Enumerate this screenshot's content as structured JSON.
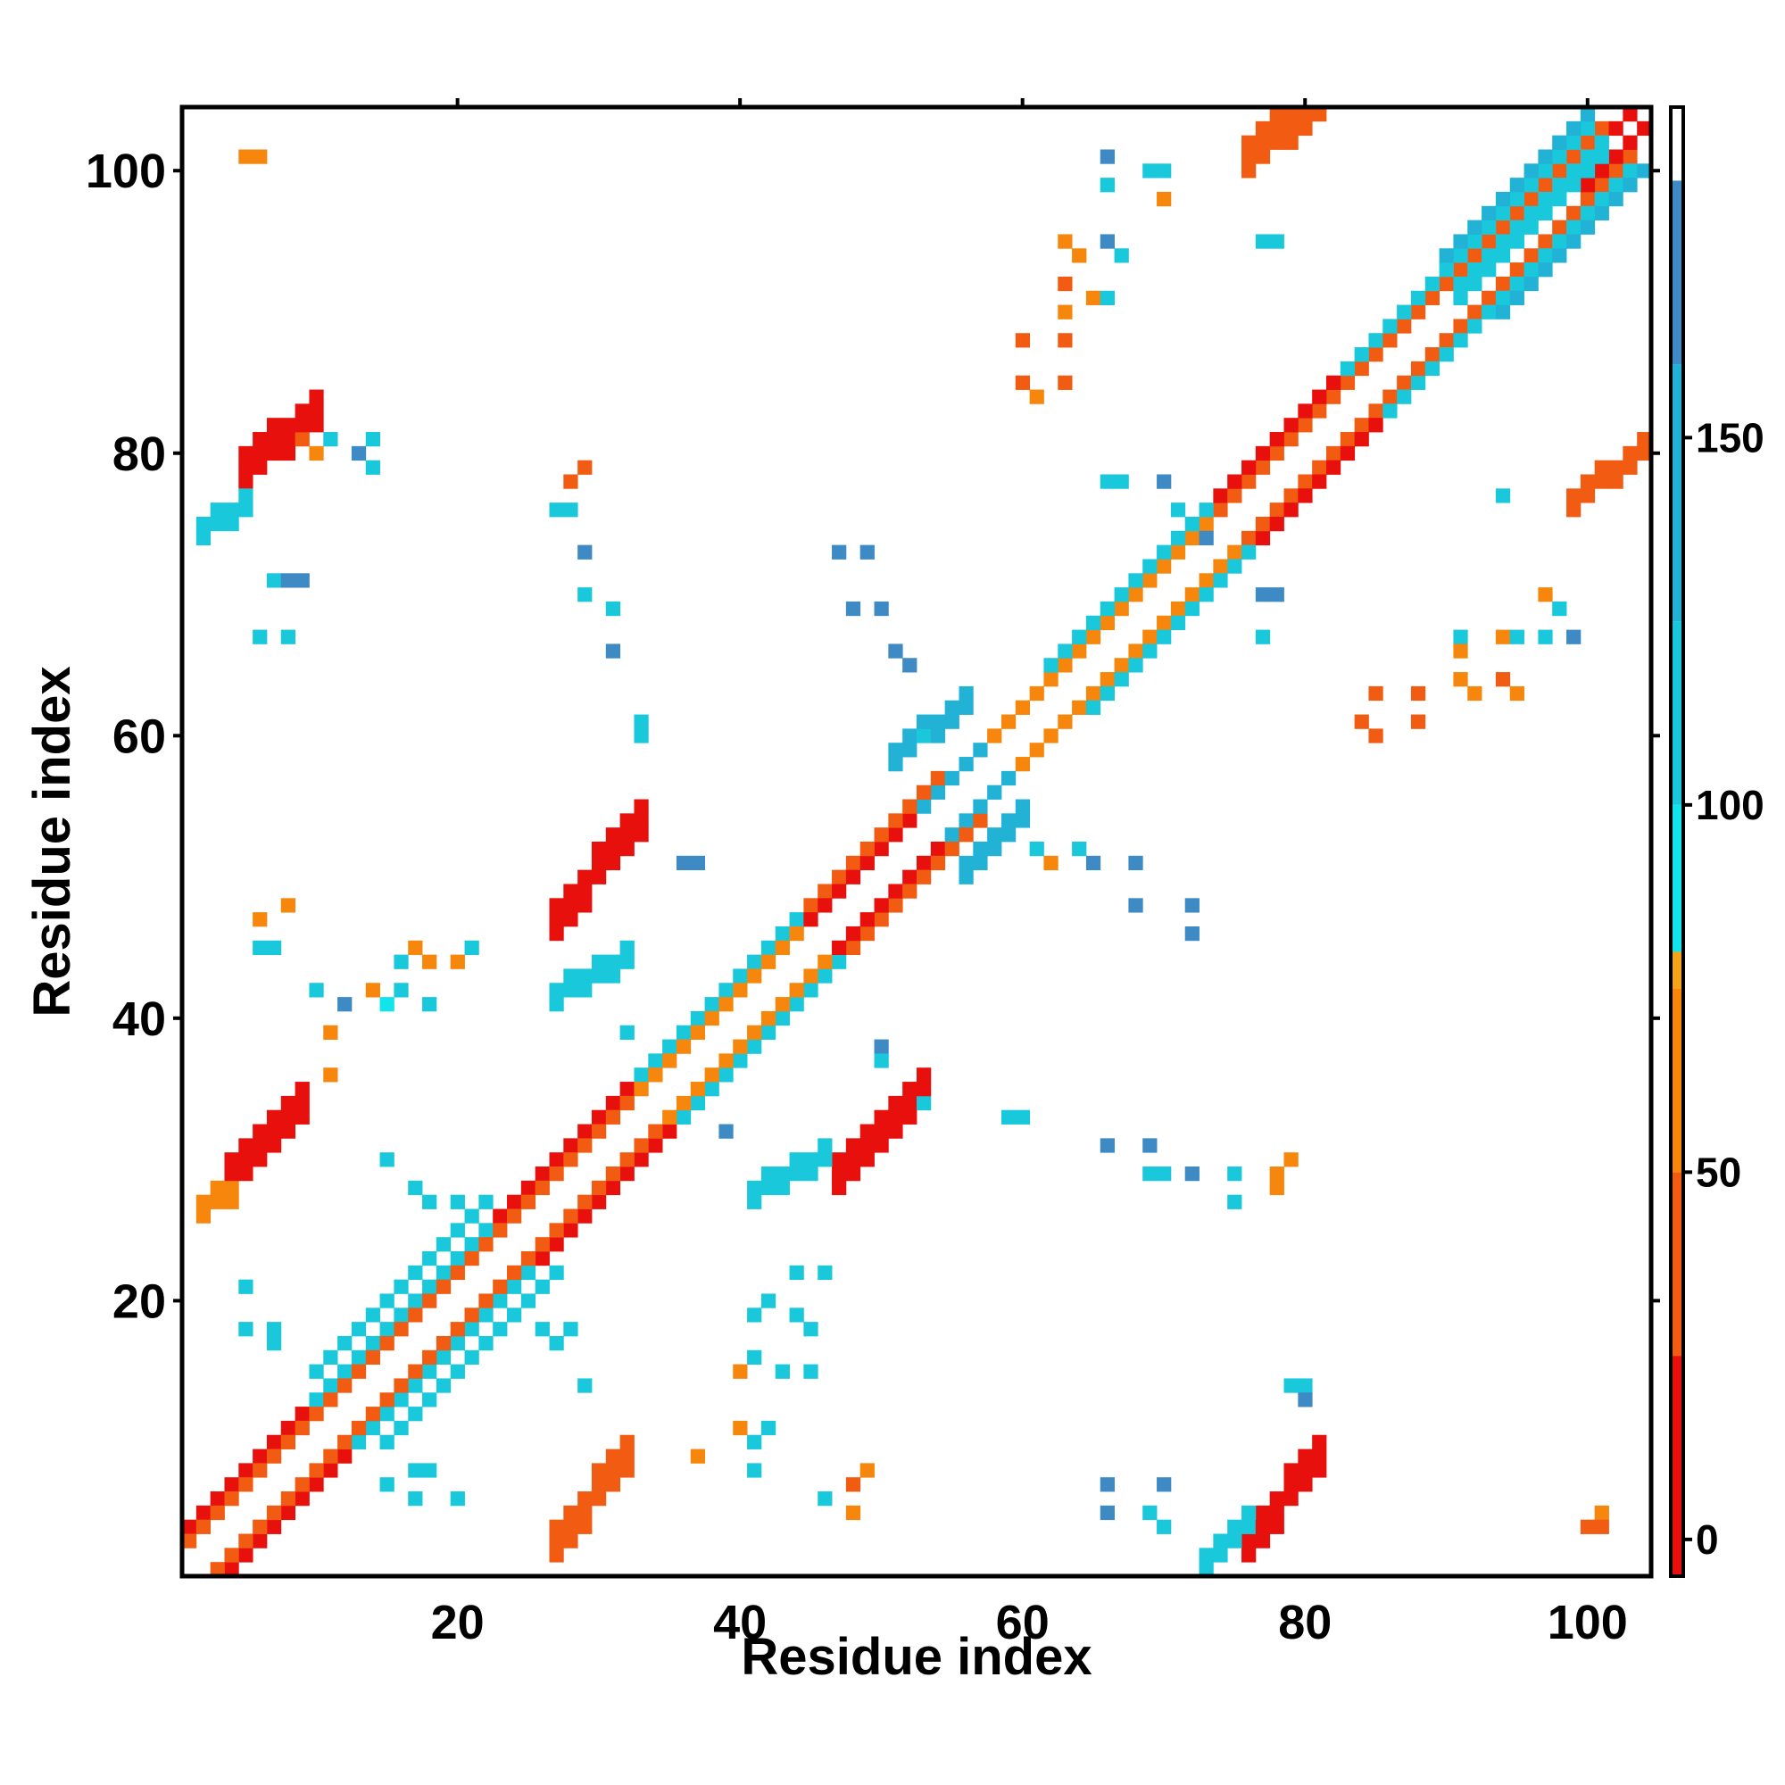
{
  "chart_data": {
    "type": "heatmap",
    "title": "",
    "xlabel": "Residue index",
    "ylabel": "Residue index",
    "xlim": [
      1,
      104
    ],
    "ylim": [
      1,
      104
    ],
    "x_ticks": [
      20,
      40,
      60,
      80,
      100
    ],
    "x_tick_labels": [
      "20",
      "40",
      "60",
      "80",
      "100"
    ],
    "y_ticks": [
      20,
      40,
      60,
      80,
      100
    ],
    "y_tick_labels": [
      "20",
      "40",
      "60",
      "80",
      "100"
    ],
    "colorbar": {
      "range": [
        -5,
        195
      ],
      "ticks": [
        0,
        50,
        100,
        150
      ],
      "tick_labels": [
        "0",
        "50",
        "100",
        "150"
      ],
      "segments": [
        {
          "from": -5,
          "to": 25,
          "color": "#e8100c"
        },
        {
          "from": 25,
          "to": 50,
          "color": "#f25c12"
        },
        {
          "from": 50,
          "to": 75,
          "color": "#f6870c"
        },
        {
          "from": 75,
          "to": 80,
          "color": "#f4a418"
        },
        {
          "from": 80,
          "to": 100,
          "color": "#12e4ec"
        },
        {
          "from": 100,
          "to": 125,
          "color": "#1ac8dc"
        },
        {
          "from": 125,
          "to": 160,
          "color": "#22b2d6"
        },
        {
          "from": 160,
          "to": 185,
          "color": "#3e8ac4"
        },
        {
          "from": 185,
          "to": 195,
          "color": "#ffffff"
        }
      ]
    },
    "regions": [
      {
        "kind": "diag",
        "x0": 1,
        "x1": 33,
        "offset": 3,
        "value": 20
      },
      {
        "kind": "diag",
        "x0": 1,
        "x1": 33,
        "offset": 2,
        "value": 45
      },
      {
        "kind": "diag",
        "x0": 10,
        "x1": 22,
        "offset": 3,
        "value": 115
      },
      {
        "kind": "diag",
        "x0": 10,
        "x1": 22,
        "offset": 5,
        "value": 120
      },
      {
        "kind": "diag",
        "x0": 33,
        "x1": 48,
        "offset": 3,
        "value": 112
      },
      {
        "kind": "diag",
        "x0": 33,
        "x1": 48,
        "offset": 2,
        "value": 60
      },
      {
        "kind": "diag",
        "x0": 45,
        "x1": 54,
        "offset": 2,
        "value": 18
      },
      {
        "kind": "diag",
        "x0": 45,
        "x1": 54,
        "offset": 3,
        "value": 45
      },
      {
        "kind": "diag",
        "x0": 53,
        "x1": 60,
        "offset": 2,
        "value": 150
      },
      {
        "kind": "diag",
        "x0": 58,
        "x1": 74,
        "offset": 2,
        "value": 55
      },
      {
        "kind": "diag",
        "x0": 62,
        "x1": 74,
        "offset": 3,
        "value": 115
      },
      {
        "kind": "diag",
        "x0": 74,
        "x1": 85,
        "offset": 2,
        "value": 35
      },
      {
        "kind": "diag",
        "x0": 74,
        "x1": 85,
        "offset": 3,
        "value": 20
      },
      {
        "kind": "diag",
        "x0": 82,
        "x1": 101,
        "offset": 2,
        "value": 45
      },
      {
        "kind": "diag",
        "x0": 83,
        "x1": 100,
        "offset": 3,
        "value": 115
      },
      {
        "kind": "diag",
        "x0": 90,
        "x1": 101,
        "offset": 4,
        "value": 130
      },
      {
        "kind": "diag",
        "x0": 99,
        "x1": 104,
        "offset": 1,
        "value": 15
      },
      {
        "kind": "band",
        "x0": 4,
        "x1": 9,
        "c0": 28,
        "c1": 33,
        "w": 3,
        "value": 20
      },
      {
        "kind": "band",
        "x0": 2,
        "x1": 4,
        "c0": 26,
        "c1": 27,
        "w": 2,
        "value": 55
      },
      {
        "kind": "band",
        "x0": 5,
        "x1": 10,
        "c0": 78,
        "c1": 82,
        "w": 3,
        "value": 20
      },
      {
        "kind": "band",
        "x0": 2,
        "x1": 5,
        "c0": 74,
        "c1": 76,
        "w": 2,
        "value": 105
      },
      {
        "kind": "band",
        "x0": 27,
        "x1": 32,
        "c0": 2,
        "c1": 8,
        "w": 3,
        "value": 40
      },
      {
        "kind": "band",
        "x0": 27,
        "x1": 33,
        "c0": 46,
        "c1": 53,
        "w": 3,
        "value": 20
      },
      {
        "kind": "band",
        "x0": 27,
        "x1": 32,
        "c0": 41,
        "c1": 44,
        "w": 2,
        "value": 110
      },
      {
        "kind": "band",
        "x0": 47,
        "x1": 53,
        "c0": 28,
        "c1": 34,
        "w": 3,
        "value": 20
      },
      {
        "kind": "band",
        "x0": 41,
        "x1": 46,
        "c0": 27,
        "c1": 30,
        "w": 2,
        "value": 110
      },
      {
        "kind": "band",
        "x0": 76,
        "x1": 81,
        "c0": 2,
        "c1": 8,
        "w": 3,
        "value": 18
      },
      {
        "kind": "band",
        "x0": 73,
        "x1": 76,
        "c0": 1,
        "c1": 4,
        "w": 2,
        "value": 105
      },
      {
        "kind": "band",
        "x0": 76,
        "x1": 81,
        "c0": 100,
        "c1": 104,
        "w": 3,
        "value": 40
      },
      {
        "kind": "band",
        "x0": 99,
        "x1": 104,
        "c0": 76,
        "c1": 80,
        "w": 2,
        "value": 40
      },
      {
        "kind": "band",
        "x0": 51,
        "x1": 56,
        "c0": 58,
        "c1": 62,
        "w": 2,
        "value": 125
      },
      {
        "kind": "band",
        "x0": 56,
        "x1": 60,
        "c0": 50,
        "c1": 54,
        "w": 2,
        "value": 125
      },
      {
        "kind": "band",
        "x0": 91,
        "x1": 101,
        "c0": 91,
        "c1": 101,
        "w": 2,
        "value": 110
      }
    ],
    "points": [
      [
        5,
        101,
        55
      ],
      [
        6,
        101,
        55
      ],
      [
        9,
        81,
        45
      ],
      [
        10,
        80,
        60
      ],
      [
        11,
        81,
        105
      ],
      [
        13,
        80,
        160
      ],
      [
        14,
        81,
        105
      ],
      [
        14,
        79,
        110
      ],
      [
        7,
        71,
        110
      ],
      [
        8,
        71,
        160
      ],
      [
        9,
        71,
        160
      ],
      [
        6,
        67,
        120
      ],
      [
        8,
        67,
        120
      ],
      [
        6,
        47,
        55
      ],
      [
        8,
        48,
        55
      ],
      [
        6,
        45,
        105
      ],
      [
        7,
        45,
        105
      ],
      [
        10,
        42,
        110
      ],
      [
        12,
        41,
        160
      ],
      [
        11,
        39,
        55
      ],
      [
        14,
        42,
        55
      ],
      [
        15,
        41,
        85
      ],
      [
        16,
        42,
        110
      ],
      [
        17,
        45,
        55
      ],
      [
        18,
        44,
        55
      ],
      [
        18,
        41,
        120
      ],
      [
        16,
        44,
        105
      ],
      [
        20,
        44,
        55
      ],
      [
        21,
        45,
        105
      ],
      [
        11,
        36,
        55
      ],
      [
        15,
        30,
        110
      ],
      [
        17,
        28,
        105
      ],
      [
        18,
        27,
        110
      ],
      [
        20,
        27,
        110
      ],
      [
        5,
        21,
        105
      ],
      [
        5,
        18,
        105
      ],
      [
        7,
        18,
        110
      ],
      [
        7,
        17,
        110
      ],
      [
        26,
        18,
        105
      ],
      [
        28,
        18,
        105
      ],
      [
        27,
        17,
        105
      ],
      [
        29,
        14,
        105
      ],
      [
        17,
        8,
        110
      ],
      [
        18,
        8,
        110
      ],
      [
        17,
        6,
        105
      ],
      [
        20,
        6,
        105
      ],
      [
        15,
        7,
        110
      ],
      [
        29,
        79,
        45
      ],
      [
        28,
        78,
        45
      ],
      [
        27,
        76,
        105
      ],
      [
        28,
        76,
        105
      ],
      [
        29,
        73,
        160
      ],
      [
        29,
        70,
        110
      ],
      [
        31,
        69,
        110
      ],
      [
        31,
        66,
        160
      ],
      [
        33,
        61,
        105
      ],
      [
        33,
        60,
        105
      ],
      [
        36,
        51,
        160
      ],
      [
        37,
        51,
        160
      ],
      [
        32,
        39,
        105
      ],
      [
        39,
        32,
        160
      ],
      [
        37,
        9,
        55
      ],
      [
        40,
        11,
        55
      ],
      [
        41,
        10,
        110
      ],
      [
        42,
        11,
        105
      ],
      [
        41,
        8,
        110
      ],
      [
        40,
        15,
        55
      ],
      [
        41,
        16,
        105
      ],
      [
        43,
        15,
        105
      ],
      [
        45,
        15,
        105
      ],
      [
        46,
        22,
        105
      ],
      [
        44,
        19,
        105
      ],
      [
        45,
        18,
        105
      ],
      [
        41,
        19,
        105
      ],
      [
        42,
        20,
        105
      ],
      [
        49,
        8,
        55
      ],
      [
        48,
        7,
        45
      ],
      [
        48,
        5,
        55
      ],
      [
        46,
        6,
        110
      ],
      [
        44,
        22,
        105
      ],
      [
        47,
        73,
        160
      ],
      [
        49,
        73,
        160
      ],
      [
        48,
        69,
        160
      ],
      [
        50,
        69,
        160
      ],
      [
        51,
        66,
        160
      ],
      [
        52,
        65,
        160
      ],
      [
        50,
        38,
        160
      ],
      [
        50,
        37,
        120
      ],
      [
        53,
        34,
        105
      ],
      [
        59,
        33,
        120
      ],
      [
        60,
        33,
        120
      ],
      [
        53,
        60,
        110
      ],
      [
        61,
        52,
        105
      ],
      [
        62,
        51,
        55
      ],
      [
        64,
        52,
        110
      ],
      [
        65,
        51,
        160
      ],
      [
        68,
        51,
        160
      ],
      [
        68,
        48,
        160
      ],
      [
        72,
        48,
        160
      ],
      [
        72,
        46,
        160
      ],
      [
        66,
        31,
        160
      ],
      [
        69,
        31,
        160
      ],
      [
        69,
        29,
        110
      ],
      [
        70,
        29,
        110
      ],
      [
        72,
        29,
        160
      ],
      [
        75,
        29,
        105
      ],
      [
        75,
        27,
        105
      ],
      [
        78,
        28,
        55
      ],
      [
        79,
        30,
        55
      ],
      [
        78,
        29,
        55
      ],
      [
        66,
        7,
        160
      ],
      [
        66,
        5,
        160
      ],
      [
        69,
        5,
        110
      ],
      [
        70,
        7,
        160
      ],
      [
        70,
        4,
        105
      ],
      [
        66,
        78,
        110
      ],
      [
        67,
        78,
        110
      ],
      [
        70,
        78,
        160
      ],
      [
        71,
        76,
        105
      ],
      [
        73,
        74,
        160
      ],
      [
        77,
        70,
        160
      ],
      [
        78,
        70,
        160
      ],
      [
        77,
        67,
        105
      ],
      [
        66,
        101,
        160
      ],
      [
        66,
        99,
        105
      ],
      [
        69,
        100,
        105
      ],
      [
        70,
        100,
        110
      ],
      [
        70,
        98,
        55
      ],
      [
        77,
        95,
        105
      ],
      [
        78,
        95,
        105
      ],
      [
        63,
        95,
        55
      ],
      [
        64,
        94,
        55
      ],
      [
        63,
        92,
        45
      ],
      [
        63,
        90,
        60
      ],
      [
        66,
        95,
        160
      ],
      [
        67,
        94,
        105
      ],
      [
        65,
        91,
        55
      ],
      [
        66,
        91,
        105
      ],
      [
        60,
        88,
        45
      ],
      [
        63,
        88,
        45
      ],
      [
        60,
        85,
        45
      ],
      [
        61,
        84,
        55
      ],
      [
        63,
        85,
        45
      ],
      [
        79,
        14,
        105
      ],
      [
        80,
        14,
        105
      ],
      [
        80,
        13,
        160
      ],
      [
        94,
        77,
        105
      ],
      [
        97,
        70,
        55
      ],
      [
        98,
        69,
        110
      ],
      [
        91,
        67,
        110
      ],
      [
        94,
        67,
        55
      ],
      [
        95,
        67,
        105
      ],
      [
        97,
        67,
        110
      ],
      [
        99,
        67,
        160
      ],
      [
        91,
        66,
        55
      ],
      [
        85,
        63,
        45
      ],
      [
        88,
        63,
        45
      ],
      [
        91,
        64,
        55
      ],
      [
        92,
        63,
        55
      ],
      [
        94,
        64,
        45
      ],
      [
        95,
        63,
        55
      ],
      [
        84,
        61,
        45
      ],
      [
        85,
        60,
        45
      ],
      [
        88,
        61,
        45
      ],
      [
        101,
        5,
        55
      ],
      [
        100,
        4,
        45
      ],
      [
        101,
        4,
        45
      ]
    ]
  }
}
